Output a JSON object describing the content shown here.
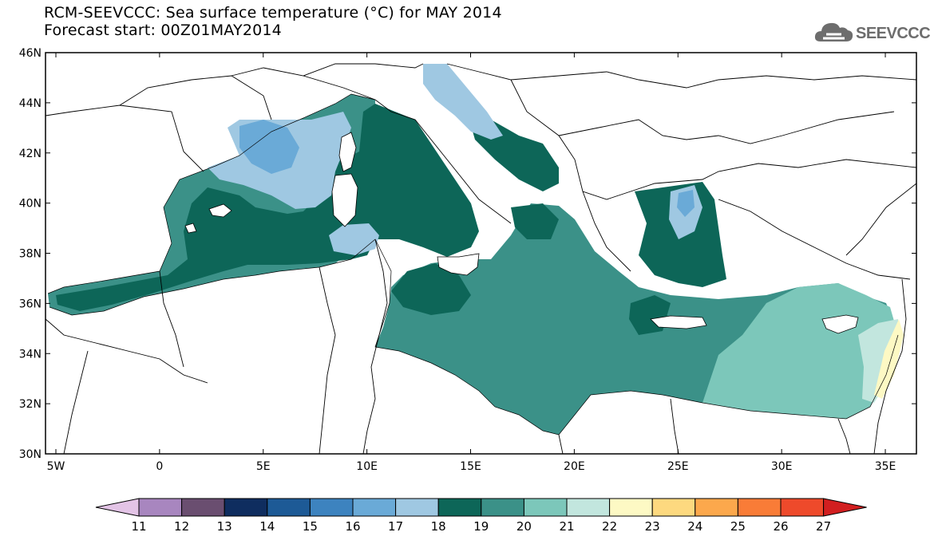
{
  "header": {
    "title": "RCM-SEEVCCC: Sea surface temperature (°C) for MAY 2014",
    "subtitle": "Forecast start: 00Z01MAY2014",
    "logo_text": "SEEVCCC"
  },
  "chart_data": {
    "type": "map",
    "xlim": [
      -5.5,
      36.5
    ],
    "ylim": [
      30,
      46
    ],
    "lon_ticks": [
      {
        "value": -5,
        "label": "5W"
      },
      {
        "value": 0,
        "label": "0"
      },
      {
        "value": 5,
        "label": "5E"
      },
      {
        "value": 10,
        "label": "10E"
      },
      {
        "value": 15,
        "label": "15E"
      },
      {
        "value": 20,
        "label": "20E"
      },
      {
        "value": 25,
        "label": "25E"
      },
      {
        "value": 30,
        "label": "30E"
      },
      {
        "value": 35,
        "label": "35E"
      }
    ],
    "lat_ticks": [
      {
        "value": 30,
        "label": "30N"
      },
      {
        "value": 32,
        "label": "32N"
      },
      {
        "value": 34,
        "label": "34N"
      },
      {
        "value": 36,
        "label": "36N"
      },
      {
        "value": 38,
        "label": "38N"
      },
      {
        "value": 40,
        "label": "40N"
      },
      {
        "value": 42,
        "label": "42N"
      },
      {
        "value": 44,
        "label": "44N"
      },
      {
        "value": 46,
        "label": "46N"
      }
    ],
    "colorbar": {
      "levels": [
        "11",
        "12",
        "13",
        "14",
        "15",
        "16",
        "17",
        "18",
        "19",
        "20",
        "21",
        "22",
        "23",
        "24",
        "25",
        "26",
        "27"
      ],
      "colors": [
        "#e3c4e6",
        "#a886bf",
        "#6a4e70",
        "#0f2d5f",
        "#1d5a96",
        "#3d83bf",
        "#6aaad7",
        "#9fc8e2",
        "#0d6658",
        "#3b9188",
        "#7cc7ba",
        "#c2e6de",
        "#fdf9c4",
        "#fdd97f",
        "#fca84c",
        "#f97c37",
        "#ee4a2b",
        "#d21f20"
      ]
    }
  }
}
